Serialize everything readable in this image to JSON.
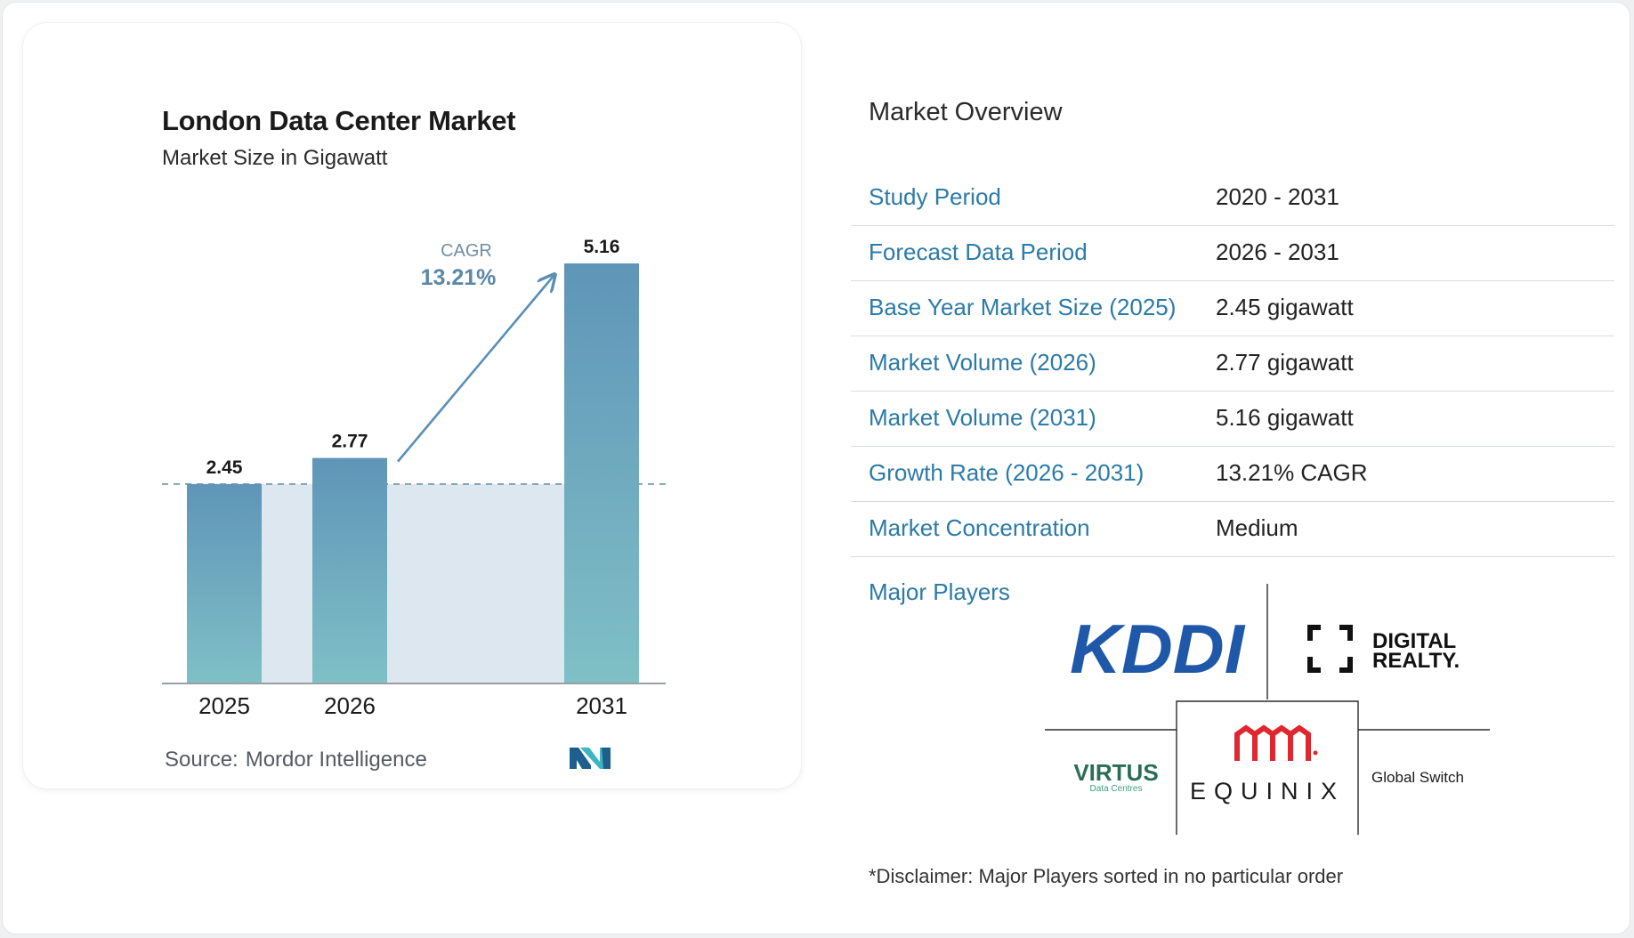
{
  "chart_data": {
    "type": "bar",
    "title": "London Data Center Market",
    "subtitle": "Market Size in Gigawatt",
    "categories": [
      "2025",
      "2026",
      "2031"
    ],
    "values": [
      2.45,
      2.77,
      5.16
    ],
    "value_labels": [
      "2.45",
      "2.77",
      "5.16"
    ],
    "ylim": [
      0,
      5.16
    ],
    "grid": false,
    "legend": "none",
    "baseline_reference": 2.45,
    "annotation": {
      "label": "CAGR",
      "value": "13.21%"
    },
    "colors": {
      "bar_top": "#5f95b8",
      "bar_bottom": "#7fc0c6",
      "band": "#dde7ef",
      "arrow": "#5a8fb5",
      "cagr_label": "#6f8da5",
      "cagr_value": "#5b87a8"
    }
  },
  "source": {
    "label": "Source:",
    "value": "Mordor Intelligence"
  },
  "overview": {
    "title": "Market Overview",
    "rows": [
      {
        "label": "Study Period",
        "value": "2020 - 2031"
      },
      {
        "label": "Forecast Data Period",
        "value": "2026 - 2031"
      },
      {
        "label": "Base Year Market Size (2025)",
        "value": "2.45 gigawatt"
      },
      {
        "label": "Market Volume (2026)",
        "value": "2.77 gigawatt"
      },
      {
        "label": "Market Volume (2031)",
        "value": "5.16 gigawatt"
      },
      {
        "label": "Growth Rate (2026 - 2031)",
        "value": "13.21% CAGR"
      },
      {
        "label": "Market Concentration",
        "value": "Medium"
      }
    ],
    "players_label": "Major Players",
    "players": [
      "KDDI",
      "Digital Realty",
      "Virtus Data Centres",
      "Equinix",
      "Global Switch"
    ],
    "logo_text": {
      "kddi": "KDDI",
      "digital_realty": [
        "DIGITAL",
        "REALTY."
      ],
      "virtus": [
        "VIRTUS",
        "Data Centres"
      ],
      "equinix": "EQUINIX",
      "global_switch": "Global Switch"
    },
    "colors": {
      "label": "#2b7aa8",
      "kddi": "#1f58a8",
      "equinix": "#e0262e",
      "virtus": "#2a6e55",
      "virtus_sub": "#3aa07a"
    }
  },
  "disclaimer": "*Disclaimer: Major Players sorted in no particular order"
}
